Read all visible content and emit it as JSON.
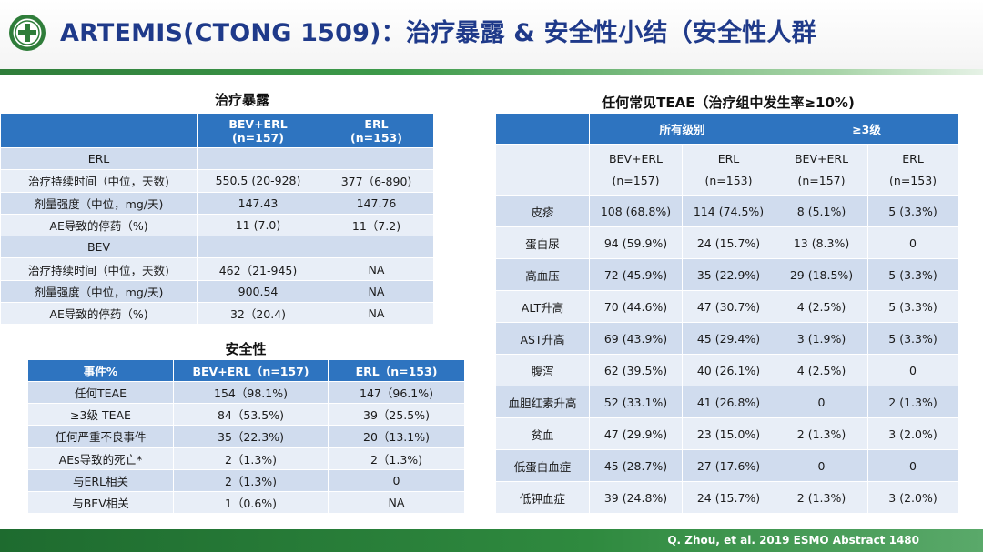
{
  "header": {
    "title": "ARTEMIS(CTONG 1509)：治疗暴露 & 安全性小结（安全性人群",
    "logo_icon": "hospital-emblem-icon",
    "accent_color": "#1f3a8a"
  },
  "exposure": {
    "title": "治疗暴露",
    "columns": [
      "",
      "BEV+ERL\n(n=157)",
      "ERL\n(n=153)"
    ],
    "col1_line1": "BEV+ERL",
    "col1_line2": "(n=157)",
    "col2_line1": "ERL",
    "col2_line2": "(n=153)",
    "rows": [
      [
        "ERL",
        "",
        ""
      ],
      [
        "治疗持续时间（中位，天数)",
        "550.5 (20-928)",
        "377（6-890)"
      ],
      [
        "剂量强度（中位，mg/天)",
        "147.43",
        "147.76"
      ],
      [
        "AE导致的停药（%)",
        "11 (7.0)",
        "11（7.2)"
      ],
      [
        "BEV",
        "",
        ""
      ],
      [
        "治疗持续时间（中位，天数)",
        "462（21-945)",
        "NA"
      ],
      [
        "剂量强度（中位，mg/天)",
        "900.54",
        "NA"
      ],
      [
        "AE导致的停药（%)",
        "32（20.4)",
        "NA"
      ]
    ]
  },
  "safety": {
    "title": "安全性",
    "columns": [
      "事件%",
      "BEV+ERL（n=157)",
      "ERL（n=153)"
    ],
    "rows": [
      [
        "任何TEAE",
        "154（98.1%)",
        "147（96.1%)"
      ],
      [
        "≥3级 TEAE",
        "84（53.5%)",
        "39（25.5%)"
      ],
      [
        "任何严重不良事件",
        "35（22.3%)",
        "20（13.1%)"
      ],
      [
        "AEs导致的死亡*",
        "2（1.3%)",
        "2（1.3%)"
      ],
      [
        "与ERL相关",
        "2（1.3%)",
        "0"
      ],
      [
        "与BEV相关",
        "1（0.6%)",
        "NA"
      ]
    ]
  },
  "teae": {
    "title": "任何常见TEAE（治疗组中发生率≥10%)",
    "group_all": "所有级别",
    "group_g3": "≥3级",
    "subheaders": [
      [
        "BEV+ERL",
        "(n=157)"
      ],
      [
        "ERL",
        "(n=153)"
      ],
      [
        "BEV+ERL",
        "(n=157)"
      ],
      [
        "ERL",
        "(n=153)"
      ]
    ],
    "rows": [
      [
        "皮疹",
        "108 (68.8%)",
        "114 (74.5%)",
        "8 (5.1%)",
        "5 (3.3%)"
      ],
      [
        "蛋白尿",
        "94 (59.9%)",
        "24 (15.7%)",
        "13 (8.3%)",
        "0"
      ],
      [
        "高血压",
        "72 (45.9%)",
        "35 (22.9%)",
        "29 (18.5%)",
        "5 (3.3%)"
      ],
      [
        "ALT升高",
        "70 (44.6%)",
        "47 (30.7%)",
        "4 (2.5%)",
        "5 (3.3%)"
      ],
      [
        "AST升高",
        "69 (43.9%)",
        "45 (29.4%)",
        "3 (1.9%)",
        "5 (3.3%)"
      ],
      [
        "腹泻",
        "62 (39.5%)",
        "40 (26.1%)",
        "4 (2.5%)",
        "0"
      ],
      [
        "血胆红素升高",
        "52 (33.1%)",
        "41 (26.8%)",
        "0",
        "2 (1.3%)"
      ],
      [
        "贫血",
        "47 (29.9%)",
        "23 (15.0%)",
        "2 (1.3%)",
        "3 (2.0%)"
      ],
      [
        "低蛋白血症",
        "45 (28.7%)",
        "27 (17.6%)",
        "0",
        "0"
      ],
      [
        "低钾血症",
        "39 (24.8%)",
        "24 (15.7%)",
        "2 (1.3%)",
        "3 (2.0%)"
      ]
    ]
  },
  "footer": {
    "citation": "Q. Zhou, et al. 2019 ESMO Abstract 1480",
    "bar_color": "#2f8a3f"
  }
}
